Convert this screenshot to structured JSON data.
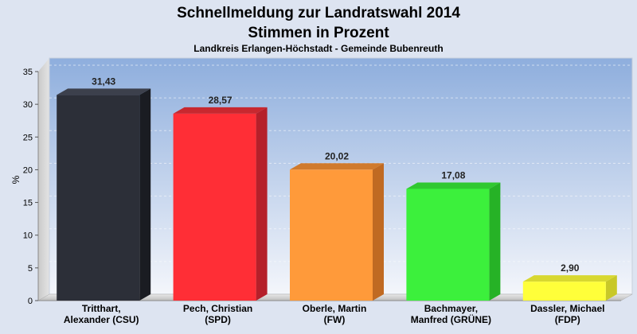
{
  "chart_data": {
    "type": "bar",
    "title": "Schnellmeldung zur Landratswahl 2014",
    "title2": "Stimmen in Prozent",
    "subtitle": "Landkreis Erlangen-Höchstadt - Gemeinde Bubenreuth",
    "ylabel": "%",
    "ylim": [
      0,
      35
    ],
    "yticks": [
      0,
      5,
      10,
      15,
      20,
      25,
      30,
      35
    ],
    "ytick_labels": [
      "0",
      "5",
      "10",
      "15",
      "20",
      "25",
      "30",
      "35"
    ],
    "grid": true,
    "categories": [
      [
        "Tritthart,",
        "Alexander (CSU)"
      ],
      [
        "Pech, Christian",
        "(SPD)"
      ],
      [
        "Oberle, Martin",
        "(FW)"
      ],
      [
        "Bachmayer,",
        "Manfred (GRÜNE)"
      ],
      [
        "Dassler, Michael",
        "(FDP)"
      ]
    ],
    "values": [
      31.43,
      28.57,
      20.02,
      17.08,
      2.9
    ],
    "value_labels": [
      "31,43",
      "28,57",
      "20,02",
      "17,08",
      "2,90"
    ],
    "colors": [
      "#2c2f38",
      "#ff2e36",
      "#ff9a3a",
      "#3cf03c",
      "#ffff3a"
    ],
    "side_colors": [
      "#1a1c22",
      "#b5202a",
      "#c06a22",
      "#26b226",
      "#c8c828"
    ],
    "top_colors": [
      "#3c404c",
      "#c8282f",
      "#d07a2c",
      "#30c830",
      "#d8d830"
    ]
  }
}
